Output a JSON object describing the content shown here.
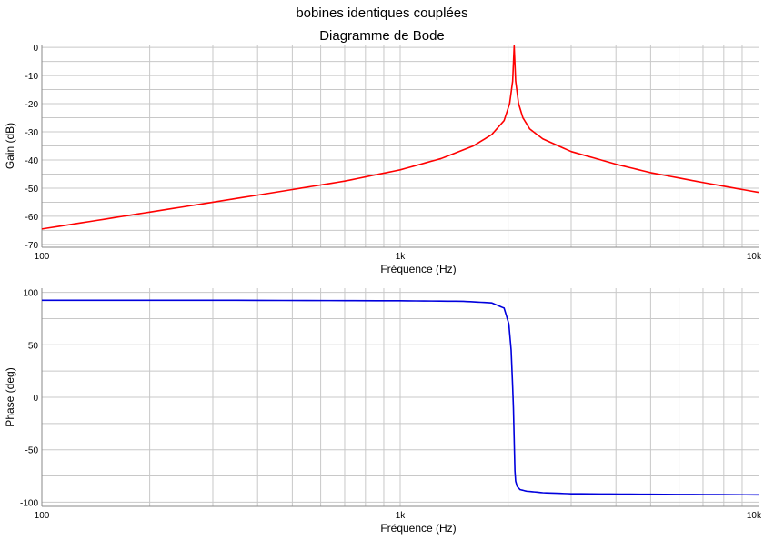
{
  "figure": {
    "title": "bobines identiques couplées",
    "subtitle": "Diagramme de Bode"
  },
  "colors": {
    "gain": "#ff0000",
    "phase": "#0000dd",
    "grid": "#c8c8c8",
    "frame": "#888888"
  },
  "chart_data": [
    {
      "type": "line",
      "title": "Diagramme de Bode",
      "xlabel": "Fréquence (Hz)",
      "ylabel": "Gain (dB)",
      "xscale": "log",
      "xlim": [
        100,
        10000
      ],
      "ylim": [
        -71,
        1
      ],
      "xtick_labels": [
        {
          "value": 100,
          "label": "100"
        },
        {
          "value": 1000,
          "label": "1k"
        },
        {
          "value": 10000,
          "label": "10k"
        }
      ],
      "ytick_labels": [
        {
          "value": 0,
          "label": "0"
        },
        {
          "value": -10,
          "label": "-10"
        },
        {
          "value": -20,
          "label": "-20"
        },
        {
          "value": -30,
          "label": "-30"
        },
        {
          "value": -40,
          "label": "-40"
        },
        {
          "value": -50,
          "label": "-50"
        },
        {
          "value": -60,
          "label": "-60"
        },
        {
          "value": -70,
          "label": "-70"
        }
      ],
      "grid": true,
      "series": [
        {
          "color": "#ff0000",
          "x": [
            100,
            150,
            200,
            300,
            500,
            700,
            1000,
            1300,
            1600,
            1800,
            1950,
            2020,
            2060,
            2080,
            2100,
            2140,
            2200,
            2300,
            2500,
            3000,
            4000,
            5000,
            7000,
            10000
          ],
          "y": [
            -64.5,
            -61,
            -58.5,
            -55,
            -50.5,
            -47.5,
            -43.5,
            -39.5,
            -35,
            -31,
            -26,
            -20,
            -12,
            0.5,
            -12,
            -20,
            -25,
            -29,
            -32.5,
            -37,
            -41.5,
            -44.5,
            -48,
            -51.5
          ]
        }
      ]
    },
    {
      "type": "line",
      "xlabel": "Fréquence (Hz)",
      "ylabel": "Phase (deg)",
      "xscale": "log",
      "xlim": [
        100,
        10000
      ],
      "ylim": [
        -104,
        104
      ],
      "xtick_labels": [
        {
          "value": 100,
          "label": "100"
        },
        {
          "value": 1000,
          "label": "1k"
        },
        {
          "value": 10000,
          "label": "10k"
        }
      ],
      "ytick_labels": [
        {
          "value": 100,
          "label": "100"
        },
        {
          "value": 50,
          "label": "50"
        },
        {
          "value": 0,
          "label": "0"
        },
        {
          "value": -50,
          "label": "-50"
        },
        {
          "value": -100,
          "label": "-100"
        }
      ],
      "grid": true,
      "series": [
        {
          "color": "#0000dd",
          "x": [
            100,
            300,
            1000,
            1500,
            1800,
            1950,
            2010,
            2040,
            2060,
            2070,
            2080,
            2090,
            2100,
            2120,
            2160,
            2250,
            2500,
            3000,
            5000,
            10000
          ],
          "y": [
            92.5,
            92.5,
            92,
            91.5,
            90,
            85,
            70,
            45,
            10,
            -10,
            -40,
            -70,
            -80,
            -85,
            -88,
            -89.5,
            -91,
            -92,
            -92.5,
            -93
          ]
        }
      ]
    }
  ]
}
